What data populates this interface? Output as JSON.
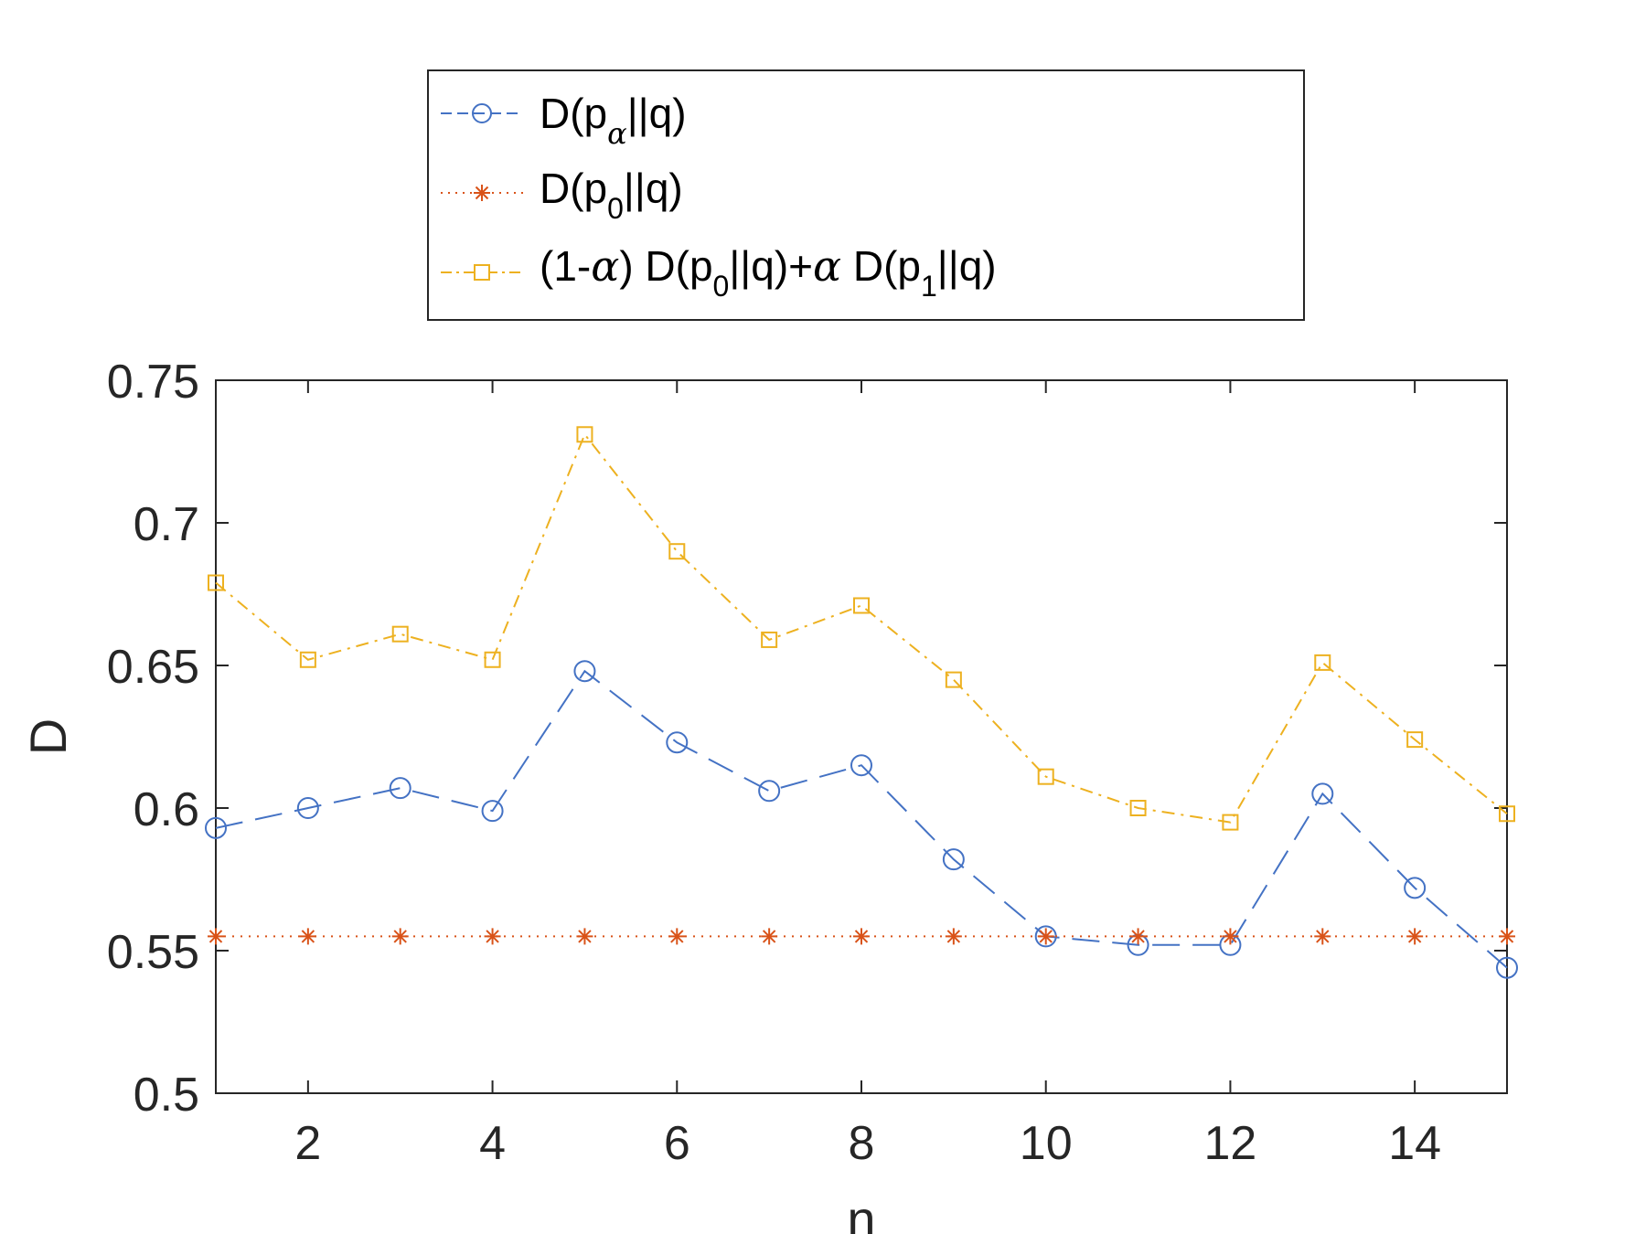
{
  "chart_data": {
    "type": "line",
    "xlabel": "n",
    "ylabel": "D",
    "xlim": [
      1,
      15
    ],
    "ylim": [
      0.5,
      0.75
    ],
    "xticks": [
      2,
      4,
      6,
      8,
      10,
      12,
      14
    ],
    "xtick_labels": [
      "2",
      "4",
      "6",
      "8",
      "10",
      "12",
      "14"
    ],
    "yticks": [
      0.5,
      0.55,
      0.6,
      0.65,
      0.7,
      0.75
    ],
    "ytick_labels": [
      "0.5",
      "0.55",
      "0.6",
      "0.65",
      "0.7",
      "0.75"
    ],
    "grid": false,
    "legend_position": "top-center, outside plot",
    "x": [
      1,
      2,
      3,
      4,
      5,
      6,
      7,
      8,
      9,
      10,
      11,
      12,
      13,
      14,
      15
    ],
    "series": [
      {
        "name": "D(p_α||q)",
        "legend": {
          "base": "D(p",
          "sub": "α",
          "after": "||q)"
        },
        "color": "#4472C4",
        "line_style": "dashed",
        "marker": "circle",
        "values": [
          0.593,
          0.6,
          0.607,
          0.599,
          0.648,
          0.623,
          0.606,
          0.615,
          0.582,
          0.555,
          0.552,
          0.552,
          0.605,
          0.572,
          0.544
        ]
      },
      {
        "name": "D(p_0||q)",
        "legend": {
          "base": "D(p",
          "sub": "0",
          "after": "||q)"
        },
        "color": "#D95319",
        "line_style": "dotted",
        "marker": "asterisk",
        "values": [
          0.555,
          0.555,
          0.555,
          0.555,
          0.555,
          0.555,
          0.555,
          0.555,
          0.555,
          0.555,
          0.555,
          0.555,
          0.555,
          0.555,
          0.555
        ]
      },
      {
        "name": "(1-α) D(p_0||q)+α D(p_1||q)",
        "legend": {
          "p1": "(1-",
          "g1": "α",
          "p2": ") D(p",
          "s1": "0",
          "p3": "||q)+",
          "g2": "α",
          "p4": " D(p",
          "s2": "1",
          "p5": "||q)"
        },
        "color": "#EDB120",
        "line_style": "dash-dot",
        "marker": "square",
        "values": [
          0.679,
          0.652,
          0.661,
          0.652,
          0.731,
          0.69,
          0.659,
          0.671,
          0.645,
          0.611,
          0.6,
          0.595,
          0.651,
          0.624,
          0.598
        ]
      }
    ]
  }
}
